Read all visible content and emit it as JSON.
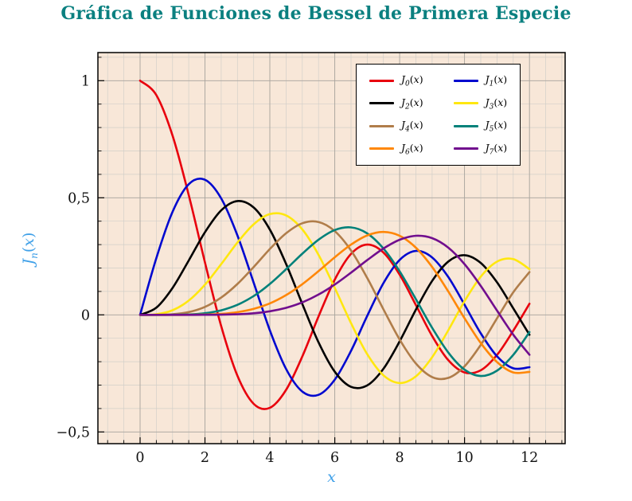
{
  "page": {
    "title_color": "#0b8080",
    "figure_bg": "#ffffff"
  },
  "chart_data": {
    "type": "line",
    "title": "Gráfica de Funciones de Bessel de Primera Especie",
    "xlabel": "x",
    "ylabel": "J_n(x)",
    "xlim": [
      -1.3,
      13.1
    ],
    "ylim": [
      -0.55,
      1.12
    ],
    "plot_bg": "#f8e7d8",
    "frame_color": "#000000",
    "axis_label_color": "#3fa0e8",
    "tick_label_color": "#111111",
    "grid": {
      "x_minor_step": 0.5,
      "x_major_step": 2,
      "y_minor_step": 0.1,
      "y_major_step": 0.5,
      "minor_color": "#d2cfc9",
      "major_color": "#a9a49d",
      "on": true
    },
    "x_ticks": {
      "values": [
        0,
        2,
        4,
        6,
        8,
        10,
        12
      ],
      "labels": [
        "0",
        "2",
        "4",
        "6",
        "8",
        "10",
        "12"
      ]
    },
    "y_ticks": {
      "values": [
        1,
        0.5,
        0,
        -0.5
      ],
      "labels": [
        "1",
        "0,5",
        "0",
        "−0,5"
      ]
    },
    "legend_position": "top-right",
    "x": [
      0,
      0.5,
      1,
      1.5,
      2,
      2.5,
      3,
      3.5,
      4,
      4.5,
      5,
      5.5,
      6,
      6.5,
      7,
      7.5,
      8,
      8.5,
      9,
      9.5,
      10,
      10.5,
      11,
      11.5,
      12
    ],
    "series": [
      {
        "name": "J_0(x)",
        "color": "#e8000d",
        "values": [
          1,
          0.9385,
          0.7652,
          0.5118,
          0.2239,
          -0.0484,
          -0.2601,
          -0.3801,
          -0.3971,
          -0.3205,
          -0.1776,
          -0.0068,
          0.1506,
          0.2601,
          0.3001,
          0.2663,
          0.1717,
          0.0419,
          -0.0903,
          -0.1939,
          -0.2459,
          -0.2366,
          -0.1712,
          -0.0677,
          0.0477
        ]
      },
      {
        "name": "J_1(x)",
        "color": "#0008cf",
        "values": [
          0,
          0.2423,
          0.4401,
          0.5579,
          0.5767,
          0.4971,
          0.3391,
          0.1374,
          -0.066,
          -0.2311,
          -0.3276,
          -0.3414,
          -0.2767,
          -0.1538,
          -0.0047,
          0.1352,
          0.2346,
          0.2731,
          0.2453,
          0.1613,
          0.0435,
          -0.0789,
          -0.1768,
          -0.2284,
          -0.2234
        ]
      },
      {
        "name": "J_2(x)",
        "color": "#000000",
        "values": [
          0,
          0.0306,
          0.1149,
          0.2321,
          0.3528,
          0.4461,
          0.4861,
          0.4586,
          0.3641,
          0.2178,
          0.0466,
          -0.1173,
          -0.2429,
          -0.3074,
          -0.3014,
          -0.2303,
          -0.113,
          0.0223,
          0.1448,
          0.2279,
          0.2546,
          0.2216,
          0.139,
          0.0279,
          -0.0849
        ]
      },
      {
        "name": "J_3(x)",
        "color": "#ffe70f",
        "values": [
          0,
          0.0026,
          0.0196,
          0.061,
          0.1289,
          0.2166,
          0.3091,
          0.3868,
          0.4302,
          0.4247,
          0.3648,
          0.2561,
          0.1148,
          -0.0353,
          -0.1676,
          -0.2581,
          -0.2911,
          -0.2626,
          -0.1809,
          -0.0653,
          0.0584,
          0.1633,
          0.2273,
          0.2381,
          0.1951
        ]
      },
      {
        "name": "J_4(x)",
        "color": "#b07d4a",
        "values": [
          0,
          0.0002,
          0.0025,
          0.0118,
          0.034,
          0.0738,
          0.132,
          0.2044,
          0.2811,
          0.3484,
          0.3912,
          0.3967,
          0.3576,
          0.2748,
          0.1578,
          0.0238,
          -0.1054,
          -0.2077,
          -0.2655,
          -0.2691,
          -0.2196,
          -0.1283,
          -0.015,
          0.0963,
          0.1825
        ]
      },
      {
        "name": "J_5(x)",
        "color": "#00817a",
        "values": [
          0,
          0,
          0.0002,
          0.0018,
          0.007,
          0.0195,
          0.043,
          0.0804,
          0.1321,
          0.1947,
          0.2611,
          0.3209,
          0.3621,
          0.3736,
          0.3479,
          0.2833,
          0.1858,
          0.0671,
          -0.055,
          -0.1613,
          -0.2341,
          -0.2611,
          -0.2383,
          -0.1711,
          -0.0735
        ]
      },
      {
        "name": "J_6(x)",
        "color": "#ff8708",
        "values": [
          0,
          0,
          0,
          0.0002,
          0.0012,
          0.0042,
          0.0114,
          0.0254,
          0.0491,
          0.0843,
          0.131,
          0.1868,
          0.2458,
          0.2999,
          0.3392,
          0.3541,
          0.3376,
          0.2867,
          0.2043,
          0.0993,
          -0.0145,
          -0.1203,
          -0.2016,
          -0.2458,
          -0.2437
        ]
      },
      {
        "name": "J_7(x)",
        "color": "#710e8e",
        "values": [
          0,
          0,
          0,
          0,
          0.0002,
          0.0008,
          0.0025,
          0.0067,
          0.0152,
          0.03,
          0.0534,
          0.0866,
          0.1296,
          0.1801,
          0.2336,
          0.2832,
          0.3206,
          0.3376,
          0.3275,
          0.2868,
          0.2167,
          0.1236,
          0.0184,
          -0.0846,
          -0.1703
        ]
      }
    ]
  }
}
